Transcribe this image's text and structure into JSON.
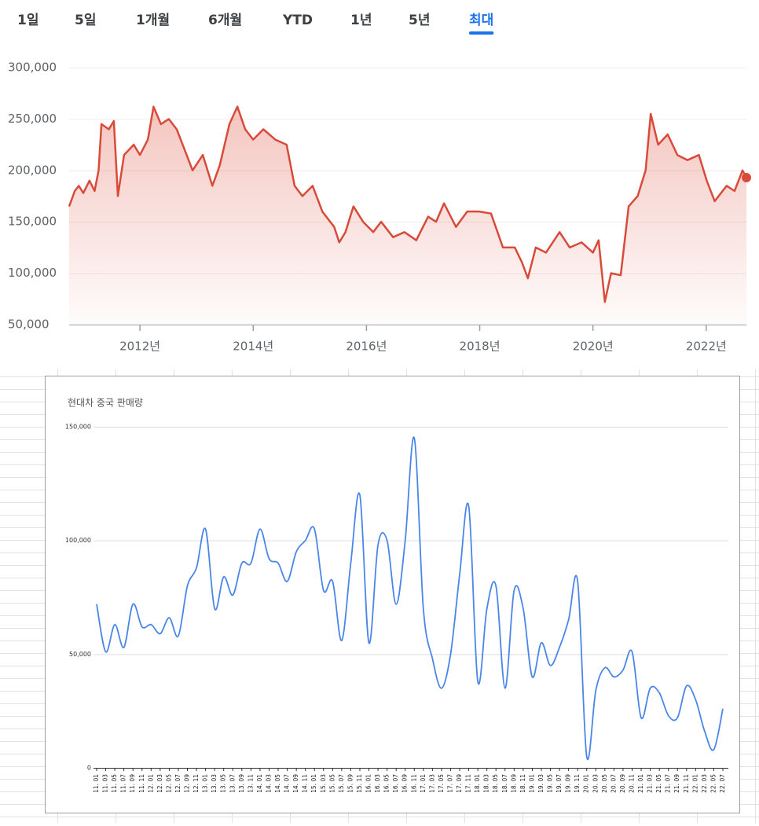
{
  "tabs": [
    "1일",
    "5일",
    "1개월",
    "6개월",
    "YTD",
    "1년",
    "5년",
    "최대"
  ],
  "selected_tab": 7,
  "chart_data": [
    {
      "type": "line",
      "color": "#d84b3a",
      "x": [
        2010.75,
        2010.85,
        2010.92,
        2011.0,
        2011.11,
        2011.2,
        2011.27,
        2011.32,
        2011.45,
        2011.54,
        2011.61,
        2011.72,
        2011.89,
        2012.0,
        2012.14,
        2012.24,
        2012.37,
        2012.51,
        2012.65,
        2012.79,
        2012.93,
        2013.11,
        2013.28,
        2013.41,
        2013.58,
        2013.72,
        2013.86,
        2014.0,
        2014.18,
        2014.39,
        2014.59,
        2014.73,
        2014.87,
        2015.05,
        2015.22,
        2015.43,
        2015.52,
        2015.63,
        2015.77,
        2015.94,
        2016.12,
        2016.26,
        2016.47,
        2016.67,
        2016.88,
        2017.09,
        2017.23,
        2017.37,
        2017.58,
        2017.78,
        2017.99,
        2018.2,
        2018.41,
        2018.62,
        2018.75,
        2018.85,
        2018.99,
        2019.17,
        2019.41,
        2019.59,
        2019.8,
        2020.0,
        2020.1,
        2020.21,
        2020.32,
        2020.49,
        2020.63,
        2020.79,
        2020.93,
        2021.02,
        2021.15,
        2021.32,
        2021.49,
        2021.67,
        2021.87,
        2022.01,
        2022.15,
        2022.36,
        2022.5,
        2022.64,
        2022.71
      ],
      "values": [
        165000,
        180000,
        185000,
        178000,
        190000,
        180000,
        200000,
        245000,
        240000,
        248000,
        175000,
        215000,
        225000,
        215000,
        230000,
        262000,
        245000,
        250000,
        240000,
        220000,
        200000,
        215000,
        185000,
        205000,
        245000,
        262000,
        240000,
        230000,
        240000,
        230000,
        225000,
        185000,
        175000,
        185000,
        160000,
        145000,
        130000,
        140000,
        165000,
        150000,
        140000,
        150000,
        135000,
        140000,
        132000,
        155000,
        150000,
        168000,
        145000,
        160000,
        160000,
        158000,
        125000,
        125000,
        110000,
        95000,
        125000,
        120000,
        140000,
        125000,
        130000,
        120000,
        132000,
        72000,
        100000,
        98000,
        165000,
        175000,
        200000,
        255000,
        225000,
        235000,
        215000,
        210000,
        215000,
        190000,
        170000,
        185000,
        180000,
        200000,
        193000
      ],
      "xlim": [
        2010.75,
        2022.71
      ],
      "xticks": [
        {
          "value": 2012,
          "label": "2012년"
        },
        {
          "value": 2014,
          "label": "2014년"
        },
        {
          "value": 2016,
          "label": "2016년"
        },
        {
          "value": 2018,
          "label": "2018년"
        },
        {
          "value": 2020,
          "label": "2020년"
        },
        {
          "value": 2022,
          "label": "2022년"
        }
      ],
      "ylim": [
        50000,
        300000
      ],
      "yticks": [
        {
          "value": 50000,
          "label": "50,000"
        },
        {
          "value": 100000,
          "label": "100,000"
        },
        {
          "value": 150000,
          "label": "150,000"
        },
        {
          "value": 200000,
          "label": "200,000"
        },
        {
          "value": 250000,
          "label": "250,000"
        },
        {
          "value": 300000,
          "label": "300,000"
        }
      ],
      "grid": true
    },
    {
      "type": "line",
      "title": "현대차 중국 판매량",
      "color": "#4a86e8",
      "categories": [
        "11. 01",
        "11. 03",
        "11. 05",
        "11. 07",
        "11. 09",
        "11. 11",
        "12. 01",
        "12. 03",
        "12. 05",
        "12. 07",
        "12. 09",
        "12. 11",
        "13. 01",
        "13. 03",
        "13. 05",
        "13. 07",
        "13. 09",
        "13. 11",
        "14. 01",
        "14. 03",
        "14. 05",
        "14. 07",
        "14. 09",
        "14. 11",
        "15. 01",
        "15. 03",
        "15. 05",
        "15. 07",
        "15. 09",
        "15. 11",
        "16. 01",
        "16. 03",
        "16. 05",
        "16. 07",
        "16. 09",
        "16. 11",
        "17. 01",
        "17. 03",
        "17. 05",
        "17. 07",
        "17. 09",
        "17. 11",
        "18. 01",
        "18. 03",
        "18. 05",
        "18. 07",
        "18. 09",
        "18. 11",
        "19. 01",
        "19. 03",
        "19. 05",
        "19. 07",
        "19. 09",
        "19. 11",
        "20. 01",
        "20. 03",
        "20. 05",
        "20. 07",
        "20. 09",
        "20. 11",
        "21. 01",
        "21. 03",
        "21. 05",
        "21. 07",
        "21. 09",
        "21. 11",
        "22. 01",
        "22. 03",
        "22. 05",
        "22. 07"
      ],
      "values": [
        72000,
        51000,
        63000,
        53000,
        72000,
        62000,
        63000,
        59000,
        66000,
        58000,
        80000,
        88000,
        105000,
        70000,
        84000,
        76000,
        90000,
        90000,
        105000,
        92000,
        90000,
        82000,
        95000,
        100000,
        105000,
        78000,
        82000,
        56000,
        90000,
        120000,
        55000,
        98000,
        100000,
        72000,
        100000,
        145000,
        70000,
        48000,
        35000,
        50000,
        85000,
        115000,
        38000,
        70000,
        80000,
        35000,
        78000,
        70000,
        40000,
        55000,
        45000,
        53000,
        65000,
        82000,
        5000,
        34000,
        44000,
        40000,
        43000,
        51000,
        22000,
        35000,
        33000,
        23000,
        22000,
        36000,
        30000,
        16000,
        8000,
        26000
      ],
      "ylim": [
        0,
        150000
      ],
      "yticks": [
        0,
        {
          "value": 50000,
          "label": "50,000"
        },
        {
          "value": 100000,
          "label": "100,000"
        },
        {
          "value": 150000,
          "label": "150,000"
        }
      ],
      "grid": true
    }
  ]
}
